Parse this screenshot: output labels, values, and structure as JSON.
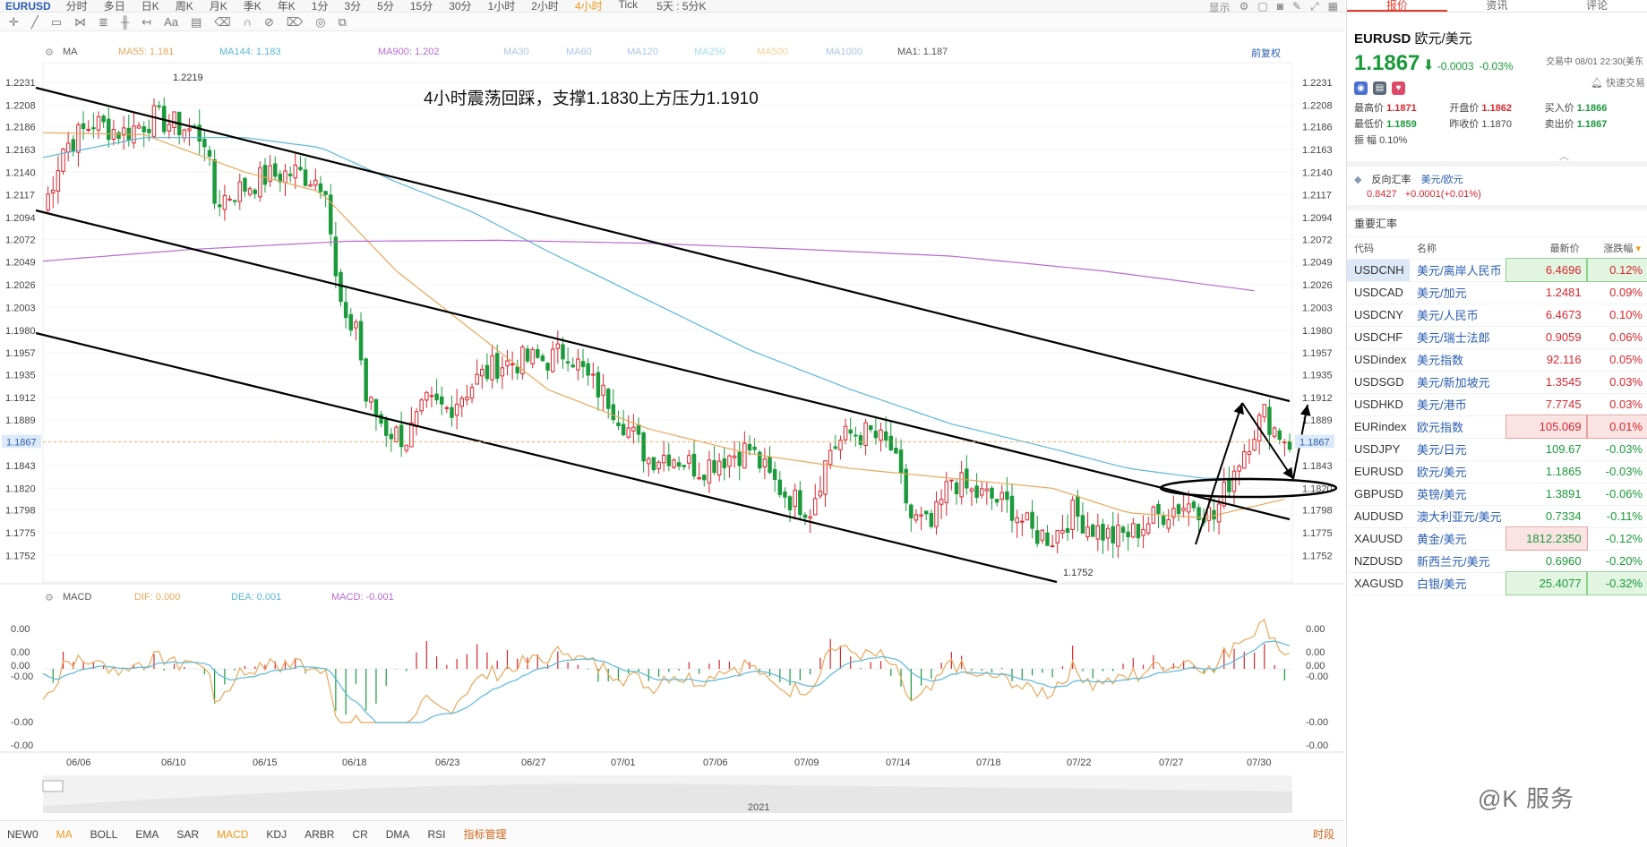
{
  "toolbar": {
    "symbol": "EURUSD",
    "timeframes": [
      "分时",
      "多日",
      "日K",
      "周K",
      "月K",
      "季K",
      "年K",
      "1分",
      "3分",
      "5分",
      "15分",
      "30分",
      "1小时",
      "2小时",
      "4小时",
      "Tick"
    ],
    "active_timeframe": "4小时",
    "period_selector": "5天 : 5分K",
    "display_label": "显示"
  },
  "ma_legend": {
    "label": "MA",
    "ma55": "MA55: 1.181",
    "ma144": "MA144: 1.183",
    "ma900": "MA900: 1.202",
    "ma30": "MA30",
    "ma60": "MA60",
    "ma120": "MA120",
    "ma250": "MA250",
    "ma500": "MA500",
    "ma1000": "MA1000",
    "ma1": "MA1: 1.187",
    "restore_label": "前复权"
  },
  "macd_legend": {
    "label": "MACD",
    "dif": "DIF: 0.000",
    "dea": "DEA: 0.001",
    "macd": "MACD: -0.001"
  },
  "chart_data": {
    "type": "candlestick",
    "title": "4小时震荡回踩，支撑1.1830上方压力1.1910",
    "price_axis_ticks": [
      "1.2231",
      "1.2208",
      "1.2186",
      "1.2163",
      "1.2140",
      "1.2117",
      "1.2094",
      "1.2072",
      "1.2049",
      "1.2026",
      "1.2003",
      "1.1980",
      "1.1957",
      "1.1935",
      "1.1912",
      "1.1889",
      "1.1867",
      "1.1843",
      "1.1820",
      "1.1798",
      "1.1775",
      "1.1752"
    ],
    "current_price_label": "1.1867",
    "high_label": "1.2219",
    "low_label": "1.1752",
    "ylim": [
      1.1745,
      1.224
    ],
    "date_ticks": [
      "06/06",
      "06/10",
      "06/15",
      "06/18",
      "06/23",
      "06/27",
      "07/01",
      "07/06",
      "07/09",
      "07/14",
      "07/18",
      "07/22",
      "07/27",
      "07/30"
    ],
    "close_path": [
      [
        0,
        1.21
      ],
      [
        4,
        1.2165
      ],
      [
        10,
        1.219
      ],
      [
        16,
        1.218
      ],
      [
        22,
        1.2195
      ],
      [
        28,
        1.2185
      ],
      [
        32,
        1.2175
      ],
      [
        34,
        1.211
      ],
      [
        38,
        1.212
      ],
      [
        44,
        1.2135
      ],
      [
        50,
        1.214
      ],
      [
        56,
        1.213
      ],
      [
        58,
        1.203
      ],
      [
        60,
        1.198
      ],
      [
        62,
        1.199
      ],
      [
        64,
        1.191
      ],
      [
        68,
        1.188
      ],
      [
        72,
        1.187
      ],
      [
        76,
        1.1905
      ],
      [
        80,
        1.19
      ],
      [
        86,
        1.193
      ],
      [
        90,
        1.1945
      ],
      [
        96,
        1.195
      ],
      [
        100,
        1.195
      ],
      [
        104,
        1.196
      ],
      [
        108,
        1.193
      ],
      [
        112,
        1.191
      ],
      [
        116,
        1.188
      ],
      [
        120,
        1.185
      ],
      [
        124,
        1.1855
      ],
      [
        130,
        1.184
      ],
      [
        134,
        1.185
      ],
      [
        140,
        1.186
      ],
      [
        144,
        1.183
      ],
      [
        148,
        1.181
      ],
      [
        152,
        1.18
      ],
      [
        156,
        1.186
      ],
      [
        160,
        1.1875
      ],
      [
        164,
        1.1875
      ],
      [
        168,
        1.186
      ],
      [
        172,
        1.179
      ],
      [
        176,
        1.178
      ],
      [
        180,
        1.183
      ],
      [
        184,
        1.1815
      ],
      [
        188,
        1.181
      ],
      [
        192,
        1.18
      ],
      [
        196,
        1.1775
      ],
      [
        200,
        1.177
      ],
      [
        204,
        1.1795
      ],
      [
        208,
        1.178
      ],
      [
        212,
        1.177
      ],
      [
        216,
        1.1775
      ],
      [
        220,
        1.179
      ],
      [
        224,
        1.18
      ],
      [
        228,
        1.1805
      ],
      [
        232,
        1.179
      ],
      [
        236,
        1.184
      ],
      [
        240,
        1.188
      ],
      [
        242,
        1.1895
      ],
      [
        244,
        1.188
      ],
      [
        247,
        1.1867
      ]
    ],
    "ma55": [
      [
        0,
        1.218
      ],
      [
        20,
        1.2178
      ],
      [
        40,
        1.214
      ],
      [
        55,
        1.212
      ],
      [
        70,
        1.204
      ],
      [
        85,
        1.198
      ],
      [
        100,
        1.192
      ],
      [
        120,
        1.188
      ],
      [
        140,
        1.1855
      ],
      [
        160,
        1.184
      ],
      [
        180,
        1.183
      ],
      [
        200,
        1.182
      ],
      [
        215,
        1.1795
      ],
      [
        230,
        1.179
      ],
      [
        247,
        1.181
      ]
    ],
    "ma144": [
      [
        0,
        1.2155
      ],
      [
        20,
        1.2175
      ],
      [
        40,
        1.2175
      ],
      [
        55,
        1.2165
      ],
      [
        70,
        1.213
      ],
      [
        85,
        1.21
      ],
      [
        100,
        1.206
      ],
      [
        120,
        1.201
      ],
      [
        140,
        1.196
      ],
      [
        160,
        1.192
      ],
      [
        180,
        1.1885
      ],
      [
        200,
        1.186
      ],
      [
        215,
        1.184
      ],
      [
        230,
        1.183
      ],
      [
        240,
        1.183
      ]
    ],
    "ma900": [
      [
        0,
        1.205
      ],
      [
        30,
        1.2062
      ],
      [
        60,
        1.207
      ],
      [
        90,
        1.2071
      ],
      [
        120,
        1.2068
      ],
      [
        150,
        1.2062
      ],
      [
        180,
        1.2055
      ],
      [
        210,
        1.204
      ],
      [
        240,
        1.202
      ]
    ],
    "macd_axis_ticks": [
      "0.00",
      "0.00",
      "0.00",
      "-0.00",
      "-0.00",
      "-0.00"
    ]
  },
  "panel": {
    "tabs": [
      "报价",
      "资讯",
      "评论"
    ],
    "symbol": "EURUSD",
    "name": "欧元/美元",
    "price": "1.1867",
    "change": "-0.0003",
    "change_pct": "-0.03%",
    "status": "交易中 08/01 22:30(美东",
    "fav_label": "快速交易",
    "stats": [
      [
        {
          "label": "最高价",
          "value": "1.1871",
          "tone": "red"
        },
        {
          "label": "开盘价",
          "value": "1.1862",
          "tone": "red"
        },
        {
          "label": "买入价",
          "value": "1.1866",
          "tone": "green"
        }
      ],
      [
        {
          "label": "最低价",
          "value": "1.1859",
          "tone": "green"
        },
        {
          "label": "昨收价",
          "value": "1.1870",
          "tone": ""
        },
        {
          "label": "卖出价",
          "value": "1.1867",
          "tone": "green"
        }
      ],
      [
        {
          "label": "振 幅",
          "value": "0.10%",
          "tone": ""
        }
      ]
    ],
    "reverse_label": "反向汇率",
    "reverse_name": "美元/欧元",
    "reverse_price": "0.8427",
    "reverse_change": "+0.0001(+0.01%)",
    "rates_title": "重要汇率",
    "rates_headers": [
      "代码",
      "名称",
      "最新价",
      "涨跌幅"
    ],
    "rates": [
      {
        "code": "USDCNH",
        "name": "美元/离岸人民币",
        "price": "6.4696",
        "pct": "0.12%",
        "dir": "up",
        "price_hl": "green",
        "pct_hl": "green",
        "selected": true
      },
      {
        "code": "USDCAD",
        "name": "美元/加元",
        "price": "1.2481",
        "pct": "0.09%",
        "dir": "up"
      },
      {
        "code": "USDCNY",
        "name": "美元/人民币",
        "price": "6.4673",
        "pct": "0.10%",
        "dir": "up"
      },
      {
        "code": "USDCHF",
        "name": "美元/瑞士法郎",
        "price": "0.9059",
        "pct": "0.06%",
        "dir": "up"
      },
      {
        "code": "USDindex",
        "name": "美元指数",
        "price": "92.116",
        "pct": "0.05%",
        "dir": "up"
      },
      {
        "code": "USDSGD",
        "name": "美元/新加坡元",
        "price": "1.3545",
        "pct": "0.03%",
        "dir": "up"
      },
      {
        "code": "USDHKD",
        "name": "美元/港币",
        "price": "7.7745",
        "pct": "0.03%",
        "dir": "up"
      },
      {
        "code": "EURindex",
        "name": "欧元指数",
        "price": "105.069",
        "pct": "0.01%",
        "dir": "up",
        "price_hl": "red",
        "pct_hl": "red"
      },
      {
        "code": "USDJPY",
        "name": "美元/日元",
        "price": "109.67",
        "pct": "-0.03%",
        "dir": "down"
      },
      {
        "code": "EURUSD",
        "name": "欧元/美元",
        "price": "1.1865",
        "pct": "-0.03%",
        "dir": "down"
      },
      {
        "code": "GBPUSD",
        "name": "英镑/美元",
        "price": "1.3891",
        "pct": "-0.06%",
        "dir": "down"
      },
      {
        "code": "AUDUSD",
        "name": "澳大利亚元/美元",
        "price": "0.7334",
        "pct": "-0.11%",
        "dir": "down"
      },
      {
        "code": "XAUUSD",
        "name": "黄金/美元",
        "price": "1812.2350",
        "pct": "-0.12%",
        "dir": "down",
        "price_hl": "red"
      },
      {
        "code": "NZDUSD",
        "name": "新西兰元/美元",
        "price": "0.6960",
        "pct": "-0.20%",
        "dir": "down"
      },
      {
        "code": "XAGUSD",
        "name": "白银/美元",
        "price": "25.4077",
        "pct": "-0.32%",
        "dir": "down",
        "price_hl": "green",
        "pct_hl": "green"
      }
    ]
  },
  "indicators": [
    "NEW0",
    "MA",
    "BOLL",
    "EMA",
    "SAR",
    "MACD",
    "KDJ",
    "ARBR",
    "CR",
    "DMA",
    "RSI",
    "指标管理"
  ],
  "active_indicators": [
    "MA",
    "MACD"
  ],
  "time_button": "时段",
  "year_label": "2021",
  "watermark": "@K 服务",
  "colors": {
    "up": "#d8262e",
    "down": "#1a9a3a",
    "ma55": "#e8a85a",
    "ma144": "#5ab8d8",
    "ma900": "#b86ad0",
    "accent": "#f19a1b"
  }
}
